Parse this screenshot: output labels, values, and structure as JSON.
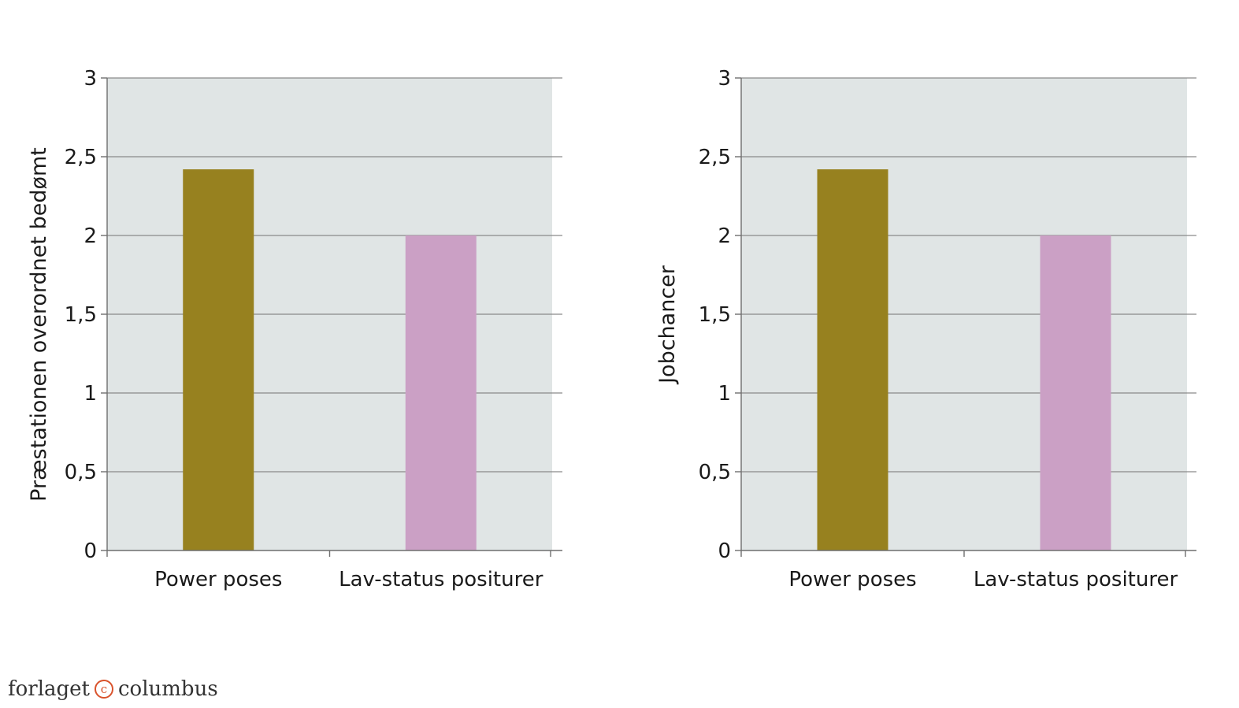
{
  "chart_data": [
    {
      "type": "bar",
      "categories": [
        "Power poses",
        "Lav-status positurer"
      ],
      "values": [
        2.42,
        2.0
      ],
      "colors": [
        "#97811f",
        "#cba0c5"
      ],
      "xlabel": "",
      "ylabel": "Præstationen overordnet bedømt",
      "ylim": [
        0,
        3
      ],
      "yticks": [
        0,
        0.5,
        1,
        1.5,
        2,
        2.5,
        3
      ],
      "ytick_labels": [
        "0",
        "0,5",
        "1",
        "1,5",
        "2",
        "2,5",
        "3"
      ],
      "grid": true,
      "plot_background": "#e0e5e5"
    },
    {
      "type": "bar",
      "categories": [
        "Power poses",
        "Lav-status positurer"
      ],
      "values": [
        2.42,
        2.0
      ],
      "colors": [
        "#97811f",
        "#cba0c5"
      ],
      "xlabel": "",
      "ylabel": "Jobchancer",
      "ylim": [
        0,
        3
      ],
      "yticks": [
        0,
        0.5,
        1,
        1.5,
        2,
        2.5,
        3
      ],
      "ytick_labels": [
        "0",
        "0,5",
        "1",
        "1,5",
        "2",
        "2,5",
        "3"
      ],
      "grid": true,
      "plot_background": "#e0e5e5"
    }
  ],
  "footer": {
    "brand_left": "forlaget",
    "brand_mark": "c",
    "brand_right": "columbus"
  }
}
